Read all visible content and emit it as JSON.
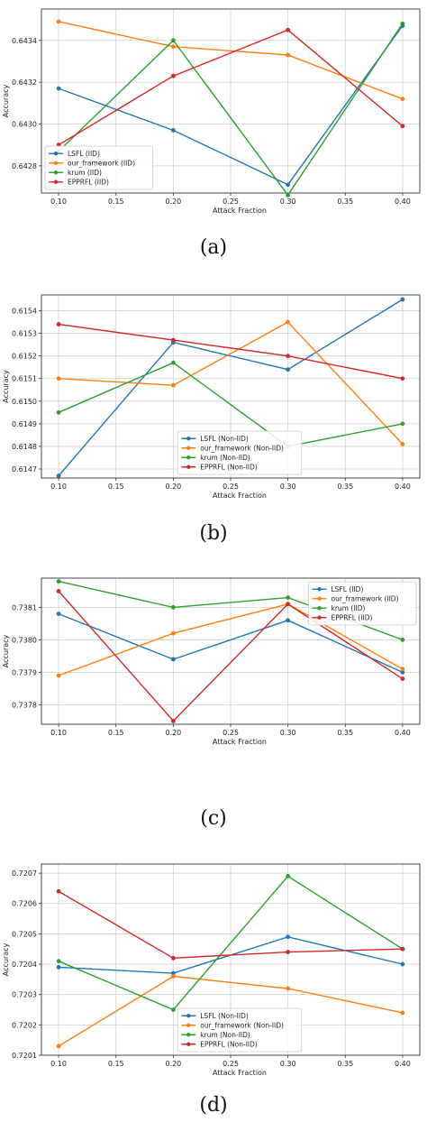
{
  "chart_data": [
    {
      "type": "line",
      "panel_label": "(a)",
      "xlabel": "Attack Fraction",
      "ylabel": "Accuracy",
      "x": [
        0.1,
        0.2,
        0.3,
        0.4
      ],
      "xticks": [
        "0.10",
        "0.15",
        "0.20",
        "0.25",
        "0.30",
        "0.35",
        "0.40"
      ],
      "yticks": [
        "0.6428",
        "0.6430",
        "0.6432",
        "0.6434"
      ],
      "ylim": [
        0.64267,
        0.64355
      ],
      "legend_position": "lower-left",
      "grid": true,
      "series": [
        {
          "name": "LSFL (IID)",
          "color": "#1f77b4",
          "values": [
            0.64317,
            0.64297,
            0.64271,
            0.64347
          ]
        },
        {
          "name": "our_framework (IID)",
          "color": "#ff7f0e",
          "values": [
            0.64349,
            0.64337,
            0.64333,
            0.64312
          ]
        },
        {
          "name": "krum (IID)",
          "color": "#2ca02c",
          "values": [
            0.64287,
            0.6434,
            0.64266,
            0.64348
          ]
        },
        {
          "name": "EPPRFL (IID)",
          "color": "#d62728",
          "values": [
            0.6429,
            0.64323,
            0.64345,
            0.64299
          ]
        }
      ]
    },
    {
      "type": "line",
      "panel_label": "(b)",
      "xlabel": "Attack Fraction",
      "ylabel": "Accuracy",
      "x": [
        0.1,
        0.2,
        0.3,
        0.4
      ],
      "xticks": [
        "0.10",
        "0.15",
        "0.20",
        "0.25",
        "0.30",
        "0.35",
        "0.40"
      ],
      "yticks": [
        "0.6147",
        "0.6148",
        "0.6149",
        "0.6150",
        "0.6151",
        "0.6152",
        "0.6153",
        "0.6154"
      ],
      "ylim": [
        0.61466,
        0.61547
      ],
      "legend_position": "lower-center",
      "grid": true,
      "series": [
        {
          "name": "LSFL (Non-IID)",
          "color": "#1f77b4",
          "values": [
            0.61467,
            0.61526,
            0.61514,
            0.61545
          ]
        },
        {
          "name": "our_framework (Non-IID)",
          "color": "#ff7f0e",
          "values": [
            0.6151,
            0.61507,
            0.61535,
            0.61481
          ]
        },
        {
          "name": "krum (Non-IID)",
          "color": "#2ca02c",
          "values": [
            0.61495,
            0.61517,
            0.6148,
            0.6149
          ]
        },
        {
          "name": "EPPRFL (Non-IID)",
          "color": "#d62728",
          "values": [
            0.61534,
            0.61527,
            0.6152,
            0.6151
          ]
        }
      ]
    },
    {
      "type": "line",
      "panel_label": "(c)",
      "xlabel": "Attack Fraction",
      "ylabel": "Accuracy",
      "x": [
        0.1,
        0.2,
        0.3,
        0.4
      ],
      "xticks": [
        "0.10",
        "0.15",
        "0.20",
        "0.25",
        "0.30",
        "0.35",
        "0.40"
      ],
      "yticks": [
        "0.7378",
        "0.7379",
        "0.7380",
        "0.7381"
      ],
      "ylim": [
        0.73774,
        0.73819
      ],
      "legend_position": "upper-right",
      "grid": true,
      "series": [
        {
          "name": "LSFL (IID)",
          "color": "#1f77b4",
          "values": [
            0.73808,
            0.73794,
            0.73806,
            0.7379
          ]
        },
        {
          "name": "our_framework (IID)",
          "color": "#ff7f0e",
          "values": [
            0.73789,
            0.73802,
            0.73811,
            0.73791
          ]
        },
        {
          "name": "krum (IID)",
          "color": "#2ca02c",
          "values": [
            0.73818,
            0.7381,
            0.73813,
            0.738
          ]
        },
        {
          "name": "EPPRFL (IID)",
          "color": "#d62728",
          "values": [
            0.73815,
            0.73775,
            0.73811,
            0.73788
          ]
        }
      ]
    },
    {
      "type": "line",
      "panel_label": "(d)",
      "xlabel": "Attack Fraction",
      "ylabel": "Accuracy",
      "x": [
        0.1,
        0.2,
        0.3,
        0.4
      ],
      "xticks": [
        "0.10",
        "0.15",
        "0.20",
        "0.25",
        "0.30",
        "0.35",
        "0.40"
      ],
      "yticks": [
        "0.7201",
        "0.7202",
        "0.7203",
        "0.7204",
        "0.7205",
        "0.7206",
        "0.7207"
      ],
      "ylim": [
        0.7201,
        0.72073
      ],
      "legend_position": "lower-center",
      "grid": true,
      "series": [
        {
          "name": "LSFL (Non-IID)",
          "color": "#1f77b4",
          "values": [
            0.72039,
            0.72037,
            0.72049,
            0.7204
          ]
        },
        {
          "name": "our_framework (Non-IID)",
          "color": "#ff7f0e",
          "values": [
            0.72013,
            0.72036,
            0.72032,
            0.72024
          ]
        },
        {
          "name": "krum (Non-IID)",
          "color": "#2ca02c",
          "values": [
            0.72041,
            0.72025,
            0.72069,
            0.72045
          ]
        },
        {
          "name": "EPPRFL (Non-IID)",
          "color": "#d62728",
          "values": [
            0.72064,
            0.72042,
            0.72044,
            0.72045
          ]
        }
      ]
    }
  ]
}
